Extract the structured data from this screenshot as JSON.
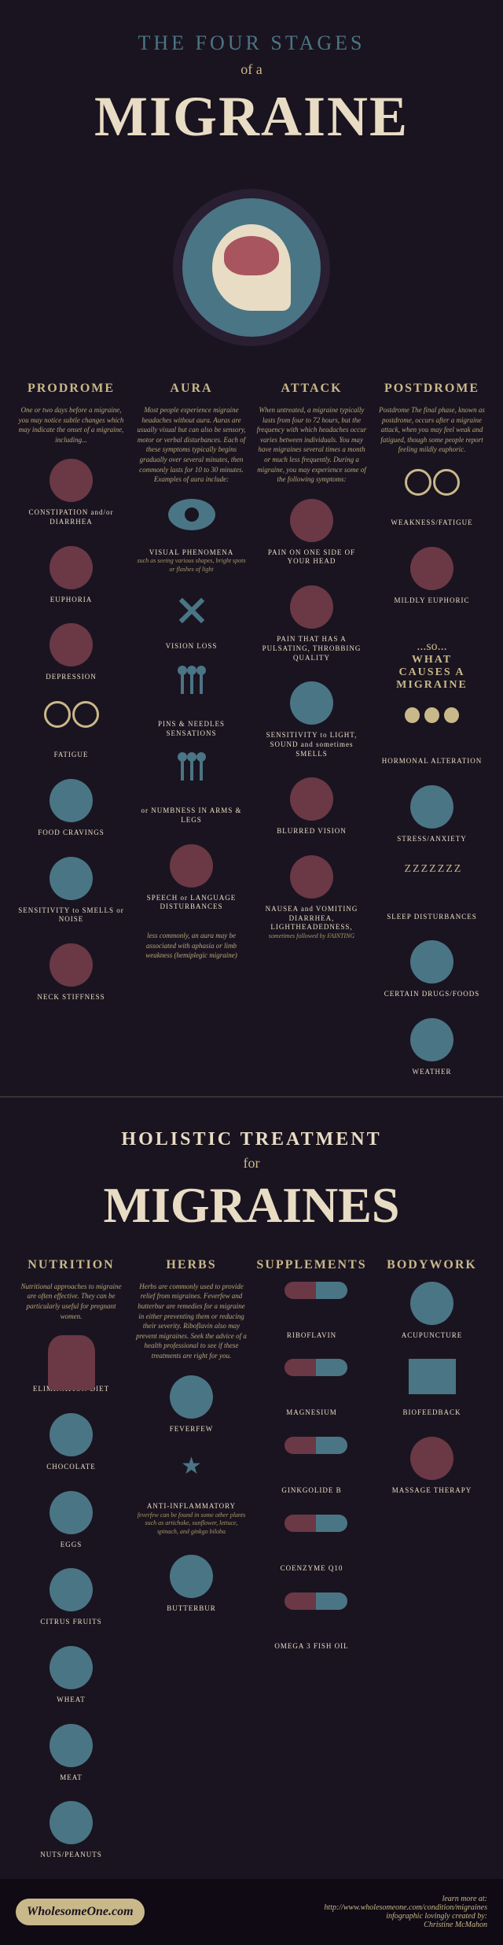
{
  "header": {
    "subtitle": "THE FOUR STAGES",
    "cursive": "of a",
    "title": "MIGRAINE"
  },
  "stages": [
    {
      "title": "PRODROME",
      "intro": "One or two days before a migraine, you may notice subtle changes which may indicate the onset of a migraine, including...",
      "items": [
        {
          "label": "CONSTIPATION and/or DIARRHEA",
          "icon": "face"
        },
        {
          "label": "EUPHORIA",
          "icon": "face"
        },
        {
          "label": "DEPRESSION",
          "icon": "face"
        },
        {
          "label": "FATIGUE",
          "icon": "glasses"
        },
        {
          "label": "FOOD CRAVINGS",
          "icon": "circle"
        },
        {
          "label": "SENSITIVITY to SMELLS or NOISE",
          "icon": "circle"
        },
        {
          "label": "NECK STIFFNESS",
          "icon": "face"
        }
      ]
    },
    {
      "title": "AURA",
      "intro": "Most people experience migraine headaches without aura. Auras are usually visual but can also be sensory, motor or verbal disturbances. Each of these symptoms typically begins gradually over several minutes, then commonly lasts for 10 to 30 minutes. Examples of aura include:",
      "items": [
        {
          "label": "VISUAL PHENOMENA",
          "sub": "such as seeing various shapes, bright spots or flashes of light",
          "icon": "eye"
        },
        {
          "label": "VISION LOSS",
          "icon": "x"
        },
        {
          "label": "PINS & NEEDLES SENSATIONS",
          "icon": "pins"
        },
        {
          "label": "or NUMBNESS IN ARMS & LEGS",
          "icon": "pins"
        },
        {
          "label": "SPEECH or LANGUAGE DISTURBANCES",
          "icon": "face"
        }
      ],
      "footer": "less commonly, an aura may be associated with aphasia or limb weakness (hemiplegic migraine)"
    },
    {
      "title": "ATTACK",
      "intro": "When untreated, a migraine typically lasts from four to 72 hours, but the frequency with which headaches occur varies between individuals. You may have migraines several times a month or much less frequently. During a migraine, you may experience some of the following symptoms:",
      "items": [
        {
          "label": "PAIN ON ONE SIDE OF YOUR HEAD",
          "icon": "face"
        },
        {
          "label": "PAIN THAT HAS A PULSATING, THROBBING QUALITY",
          "icon": "face"
        },
        {
          "label": "SENSITIVITY to LIGHT, SOUND and sometimes SMELLS",
          "icon": "circle"
        },
        {
          "label": "BLURRED VISION",
          "icon": "face"
        },
        {
          "label": "NAUSEA and VOMITING DIARRHEA, LIGHTHEADEDNESS,",
          "sub": "sometimes followed by FAINTING",
          "icon": "face"
        }
      ]
    },
    {
      "title": "POSTDROME",
      "intro": "Postdrome The final phase, known as postdrome, occurs after a migraine attack, when you may feel weak and fatigued, though some people report feeling mildly euphoric.",
      "items": [
        {
          "label": "WEAKNESS/FATIGUE",
          "icon": "glasses"
        },
        {
          "label": "MILDLY EUPHORIC",
          "icon": "face"
        }
      ]
    }
  ],
  "causes": {
    "lead": "...so...",
    "title": "WHAT CAUSES A MIGRAINE",
    "items": [
      {
        "label": "HORMONAL ALTERATION",
        "icon": "symbols"
      },
      {
        "label": "STRESS/ANXIETY",
        "icon": "circle"
      },
      {
        "label": "SLEEP DISTURBANCES",
        "sub": "ZZZZZZZ",
        "icon": "text"
      },
      {
        "label": "CERTAIN DRUGS/FOODS",
        "icon": "circle"
      },
      {
        "label": "WEATHER",
        "icon": "circle"
      }
    ]
  },
  "header2": {
    "subtitle": "HOLISTIC TREATMENT",
    "cursive": "for",
    "title": "MIGRAINES"
  },
  "treatments": [
    {
      "title": "NUTRITION",
      "intro": "Nutritional approaches to migraine are often effective. They can be particularly useful for pregnant women.",
      "items": [
        {
          "label": "ELIMINATION DIET",
          "icon": "hand"
        },
        {
          "label": "CHOCOLATE",
          "icon": "circle"
        },
        {
          "label": "EGGS",
          "icon": "circle"
        },
        {
          "label": "CITRUS FRUITS",
          "icon": "circle"
        },
        {
          "label": "WHEAT",
          "icon": "circle"
        },
        {
          "label": "MEAT",
          "icon": "circle"
        },
        {
          "label": "NUTS/PEANUTS",
          "icon": "circle"
        }
      ]
    },
    {
      "title": "HERBS",
      "intro": "Herbs are commonly used to provide relief from migraines. Feverfew and butterbur are remedies for a migraine in either preventing them or reducing their severity. Riboflavin also may prevent migraines. Seek the advice of a health professional to see if these treatments are right for you.",
      "items": [
        {
          "label": "FEVERFEW",
          "icon": "circle"
        },
        {
          "label": "ANTI-INFLAMMATORY",
          "sub": "feverfew can be found in some other plants such as artichoke, sunflower, lettuce, spinach, and ginkgo biloba",
          "icon": "star"
        },
        {
          "label": "BUTTERBUR",
          "icon": "circle"
        }
      ]
    },
    {
      "title": "SUPPLEMENTS",
      "intro": "",
      "items": [
        {
          "label": "RIBOFLAVIN",
          "icon": "pill"
        },
        {
          "label": "MAGNESIUM",
          "icon": "pill"
        },
        {
          "label": "GINKGOLIDE B",
          "icon": "pill"
        },
        {
          "label": "COENZYME Q10",
          "icon": "pill"
        },
        {
          "label": "OMEGA 3 FISH OIL",
          "icon": "pill"
        }
      ]
    },
    {
      "title": "BODYWORK",
      "intro": "",
      "items": [
        {
          "label": "ACUPUNCTURE",
          "icon": "circle"
        },
        {
          "label": "BIOFEEDBACK",
          "icon": "square"
        },
        {
          "label": "MASSAGE THERAPY",
          "icon": "face"
        }
      ]
    }
  ],
  "footer": {
    "logo": "WholesomeOne.com",
    "learn": "learn more at:",
    "url": "http://www.wholesomeone.com/condition/migraines",
    "credit": "infographic lovingly created by:",
    "author": "Christine McMahon"
  },
  "colors": {
    "bg": "#1a1420",
    "gold": "#c9b88a",
    "teal": "#4a7585",
    "maroon": "#6b3845",
    "cream": "#e8dcc4"
  }
}
